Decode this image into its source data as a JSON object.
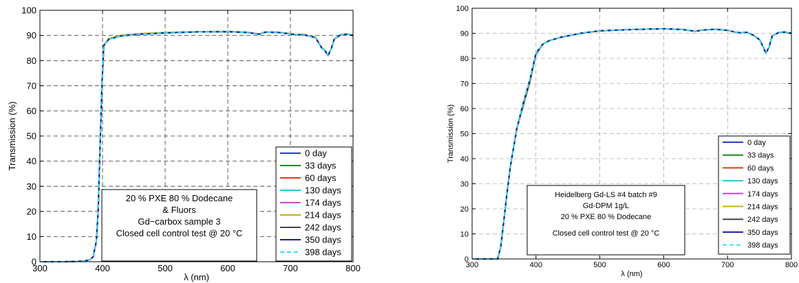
{
  "chart_data": [
    {
      "type": "line",
      "title": "",
      "xlabel": "λ (nm)",
      "ylabel": "Transmission (%)",
      "xlim": [
        300,
        800
      ],
      "ylim": [
        0,
        100
      ],
      "xticks": [
        300,
        400,
        500,
        600,
        700,
        800
      ],
      "yticks": [
        0,
        10,
        20,
        30,
        40,
        50,
        60,
        70,
        80,
        90,
        100
      ],
      "grid": "dashed",
      "legend_position": "bottom-right",
      "annotation_lines": [
        "20 % PXE 80 % Dodecane",
        "& Fluors",
        "Gd−carbox sample 3",
        "Closed cell control test @ 20 °C"
      ],
      "x": [
        300,
        340,
        370,
        380,
        385,
        390,
        393,
        396,
        399,
        402,
        410,
        430,
        460,
        500,
        550,
        600,
        630,
        650,
        660,
        680,
        700,
        710,
        720,
        730,
        740,
        750,
        755,
        760,
        765,
        770,
        780,
        790,
        800
      ],
      "series": [
        {
          "name": "0 day",
          "color": "#1f3fcc",
          "style": "solid",
          "values": [
            0,
            0,
            0.2,
            0.8,
            2,
            8,
            20,
            45,
            70,
            86,
            88.5,
            89.8,
            90.5,
            91,
            91.4,
            91.5,
            91.2,
            90.5,
            91.3,
            91.2,
            90.6,
            90.2,
            90.4,
            89.7,
            89.2,
            85,
            84,
            82,
            84.5,
            88.5,
            90.2,
            90.5,
            90
          ]
        },
        {
          "name": "33 days",
          "color": "#1a8a1a",
          "style": "solid",
          "values": [
            0,
            0,
            0.2,
            0.8,
            2,
            8,
            20,
            45,
            70,
            86,
            88.6,
            89.9,
            90.6,
            91.1,
            91.4,
            91.5,
            91.2,
            90.5,
            91.3,
            91.2,
            90.6,
            90.2,
            90.4,
            89.7,
            89.2,
            85,
            84,
            82,
            84.5,
            88.5,
            90.2,
            90.5,
            90
          ]
        },
        {
          "name": "60 days",
          "color": "#e03a1a",
          "style": "solid",
          "values": [
            0,
            0,
            0.2,
            0.8,
            2,
            8,
            20,
            45,
            70,
            86,
            88.7,
            90,
            90.7,
            91.1,
            91.5,
            91.6,
            91.3,
            90.6,
            91.4,
            91.3,
            90.7,
            90.3,
            90.5,
            89.8,
            89.3,
            85.1,
            84.1,
            82.1,
            84.6,
            88.6,
            90.3,
            90.6,
            90.1
          ]
        },
        {
          "name": "130 days",
          "color": "#22c8d8",
          "style": "solid",
          "values": [
            0,
            0,
            0.2,
            0.8,
            2,
            8,
            20,
            45,
            70,
            86,
            88.5,
            89.8,
            90.5,
            91,
            91.4,
            91.5,
            91.2,
            90.5,
            91.3,
            91.2,
            90.6,
            90.2,
            90.4,
            89.7,
            89.2,
            85,
            84,
            82,
            84.5,
            88.5,
            90.2,
            90.5,
            90
          ]
        },
        {
          "name": "174 days",
          "color": "#cc44cc",
          "style": "solid",
          "values": [
            0,
            0,
            0.2,
            0.8,
            2,
            8,
            20,
            45,
            70,
            86,
            88.5,
            89.8,
            90.5,
            91,
            91.4,
            91.5,
            91.2,
            90.5,
            91.3,
            91.2,
            90.6,
            90.2,
            90.4,
            89.7,
            89.2,
            85,
            84,
            82,
            84.5,
            88.5,
            90.2,
            90.5,
            90
          ]
        },
        {
          "name": "214 days",
          "color": "#c8b400",
          "style": "solid",
          "values": [
            0,
            0,
            0.2,
            0.8,
            2,
            8,
            20,
            45,
            70,
            86,
            88.8,
            90.1,
            90.7,
            91.2,
            91.5,
            91.6,
            91.3,
            90.6,
            91.4,
            91.3,
            90.7,
            90.3,
            90.5,
            89.8,
            89.3,
            85.1,
            84.1,
            82.1,
            84.6,
            88.6,
            90.3,
            90.6,
            90.1
          ]
        },
        {
          "name": "242 days",
          "color": "#444444",
          "style": "solid",
          "values": [
            0,
            0,
            0.2,
            0.8,
            2,
            8,
            20,
            45,
            70,
            86,
            88.5,
            89.8,
            90.5,
            91,
            91.4,
            91.5,
            91.2,
            90.5,
            91.3,
            91.2,
            90.6,
            90.2,
            90.4,
            89.7,
            89.2,
            85,
            84,
            82,
            84.5,
            88.5,
            90.2,
            90.5,
            90
          ]
        },
        {
          "name": "350 days",
          "color": "#1a1aa8",
          "style": "solid",
          "values": [
            0,
            0,
            0.2,
            0.8,
            2,
            8,
            20,
            45,
            70,
            86,
            88.5,
            89.8,
            90.5,
            91,
            91.4,
            91.5,
            91.2,
            90.5,
            91.3,
            91.2,
            90.6,
            90.2,
            90.4,
            89.7,
            89.2,
            85,
            84,
            82,
            84.5,
            88.5,
            90.2,
            90.5,
            90
          ]
        },
        {
          "name": "398 days",
          "color": "#33e0e8",
          "style": "dashed",
          "values": [
            0,
            0,
            0.2,
            0.8,
            2,
            8,
            20,
            45,
            70,
            86,
            88.5,
            89.8,
            90.5,
            91,
            91.4,
            91.5,
            91.2,
            90.5,
            91.3,
            91.2,
            90.6,
            90.2,
            90.4,
            89.7,
            89.2,
            85,
            84,
            82,
            84.5,
            88.5,
            90.2,
            90.5,
            90
          ]
        }
      ]
    },
    {
      "type": "line",
      "title": "",
      "xlabel": "λ (nm)",
      "ylabel": "Transmission (%)",
      "xlim": [
        300,
        800
      ],
      "ylim": [
        0,
        100
      ],
      "xticks": [
        300,
        400,
        500,
        600,
        700,
        800
      ],
      "yticks": [
        0,
        10,
        20,
        30,
        40,
        50,
        60,
        70,
        80,
        90,
        100
      ],
      "grid": "dashed",
      "legend_position": "bottom-right",
      "annotation_lines": [
        "Heidelberg Gd-LS #4 batch #9",
        "Gd-DPM 1g/L",
        "20 % PXE 80 % Dodecane",
        "Closed cell control test @ 20 °C"
      ],
      "x": [
        300,
        330,
        340,
        345,
        350,
        355,
        360,
        370,
        380,
        390,
        400,
        410,
        420,
        440,
        470,
        500,
        550,
        600,
        630,
        650,
        660,
        680,
        700,
        710,
        720,
        730,
        740,
        750,
        755,
        760,
        765,
        770,
        780,
        790,
        800
      ],
      "series": [
        {
          "name": "0 day",
          "color": "#1f3fcc",
          "style": "solid",
          "values": [
            0,
            0,
            0,
            5,
            16,
            27,
            37,
            52,
            62,
            71,
            82,
            85.5,
            87,
            88.5,
            90,
            91,
            91.5,
            91.8,
            91.5,
            90.8,
            91.3,
            91.6,
            91.2,
            90.6,
            90.2,
            90.4,
            89.3,
            87.5,
            85,
            82,
            84.5,
            89,
            90.3,
            90.5,
            90
          ]
        },
        {
          "name": "33 days",
          "color": "#1a8a1a",
          "style": "solid",
          "values": [
            0,
            0,
            0,
            5,
            16,
            27,
            37,
            52,
            61,
            70,
            81.5,
            85.5,
            87,
            88.5,
            90,
            91,
            91.5,
            91.8,
            91.5,
            90.8,
            91.3,
            91.6,
            91.2,
            90.6,
            90.2,
            90.4,
            89.3,
            87.5,
            85,
            82,
            84.5,
            89,
            90.3,
            90.5,
            90
          ]
        },
        {
          "name": "60 days",
          "color": "#e03a1a",
          "style": "solid",
          "values": [
            0,
            0,
            0,
            5,
            16,
            27,
            37,
            52,
            61.5,
            70.5,
            81.8,
            85.5,
            87,
            88.5,
            90,
            91,
            91.5,
            91.8,
            91.5,
            90.8,
            91.3,
            91.6,
            91.2,
            90.6,
            90.2,
            90.4,
            89.3,
            87.5,
            85,
            82,
            84.5,
            89,
            90.3,
            90.5,
            90
          ]
        },
        {
          "name": "130 days",
          "color": "#22c8d8",
          "style": "solid",
          "values": [
            0,
            0,
            0,
            5,
            16,
            27,
            37,
            52,
            62,
            71,
            82,
            85.5,
            87,
            88.5,
            90,
            91,
            91.5,
            91.8,
            91.5,
            90.8,
            91.3,
            91.6,
            91.2,
            90.6,
            90.2,
            90.4,
            89.3,
            87.5,
            85,
            82,
            84.5,
            89,
            90.3,
            90.5,
            90
          ]
        },
        {
          "name": "174 days",
          "color": "#cc44cc",
          "style": "solid",
          "values": [
            0,
            0,
            0,
            5,
            16,
            27,
            37,
            52,
            62,
            71,
            82,
            85.5,
            87,
            88.5,
            90,
            91,
            91.5,
            91.8,
            91.5,
            90.8,
            91.3,
            91.6,
            91.2,
            90.6,
            90.2,
            90.4,
            89.3,
            87.5,
            85,
            82,
            84.5,
            89,
            90.3,
            90.5,
            90
          ]
        },
        {
          "name": "214 days",
          "color": "#c8b400",
          "style": "solid",
          "values": [
            0,
            0,
            0,
            5,
            16,
            27,
            37,
            52,
            62,
            71,
            82,
            85.5,
            87,
            88.5,
            90,
            91,
            91.5,
            91.8,
            91.5,
            90.8,
            91.3,
            91.6,
            91.2,
            90.6,
            90.2,
            90.4,
            89.3,
            87.5,
            85,
            82,
            84.5,
            89,
            90.3,
            90.5,
            90
          ]
        },
        {
          "name": "242 days",
          "color": "#444444",
          "style": "solid",
          "values": [
            0,
            0,
            0,
            5,
            16,
            27,
            37,
            52,
            62,
            71,
            82,
            85.5,
            87,
            88.5,
            90,
            91,
            91.5,
            91.8,
            91.5,
            90.8,
            91.3,
            91.6,
            91.2,
            90.6,
            90.2,
            90.4,
            89.3,
            87.5,
            85,
            82,
            84.5,
            89,
            90.3,
            90.5,
            90
          ]
        },
        {
          "name": "350 days",
          "color": "#1a1aa8",
          "style": "solid",
          "values": [
            0,
            0,
            0,
            5,
            16,
            27,
            37,
            52,
            62,
            71,
            82,
            85.5,
            87,
            88.5,
            90,
            91,
            91.5,
            91.8,
            91.5,
            90.8,
            91.3,
            91.6,
            91.2,
            90.6,
            90.2,
            90.4,
            89.3,
            87.5,
            85,
            82,
            84.5,
            89,
            90.3,
            90.5,
            90
          ]
        },
        {
          "name": "398 days",
          "color": "#33e0e8",
          "style": "dashed",
          "values": [
            0,
            0,
            0,
            5,
            16,
            27,
            37,
            52,
            62,
            71,
            82,
            85.5,
            87,
            88.5,
            90,
            91,
            91.5,
            91.8,
            91.5,
            90.8,
            91.3,
            91.6,
            91.2,
            90.6,
            90.2,
            90.4,
            89.3,
            87.5,
            85,
            82,
            84.5,
            89,
            90.3,
            90.5,
            90
          ]
        }
      ]
    }
  ]
}
